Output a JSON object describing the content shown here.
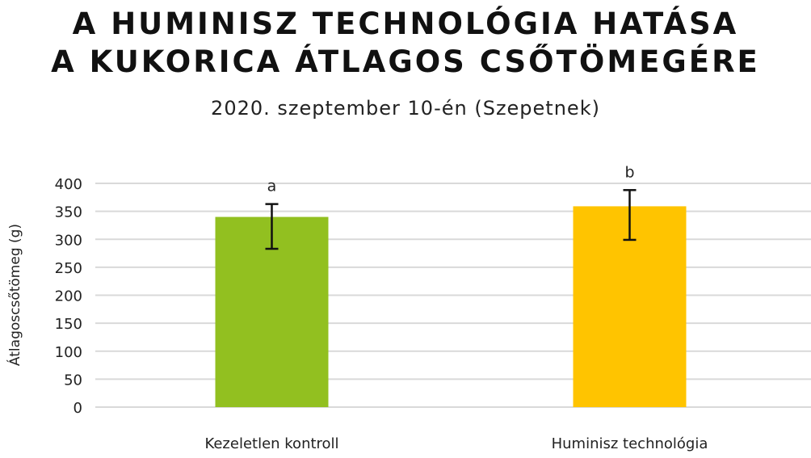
{
  "chart_data": {
    "type": "bar",
    "title_lines": [
      "A HUMINISZ TECHNOLÓGIA HATÁSA",
      "A KUKORICA ÁTLAGOS CSŐTÖMEGÉRE"
    ],
    "subtitle": "2020. szeptember 10-én  (Szepetnek)",
    "xlabel": "",
    "ylabel": "Átlagoscsőtömeg (g)",
    "ylim": [
      0,
      400
    ],
    "yticks": [
      0,
      50,
      100,
      150,
      200,
      250,
      300,
      350,
      400
    ],
    "grid": true,
    "categories": [
      "Kezeletlen kontroll",
      "Huminisz technológia"
    ],
    "values": [
      340,
      359
    ],
    "error_low": [
      283,
      299
    ],
    "error_high": [
      363,
      388
    ],
    "significance_labels": [
      "a",
      "b"
    ],
    "colors": [
      "#92c020",
      "#ffc400"
    ],
    "grid_color": "#d9d9d9",
    "errorbar_color": "#111111"
  }
}
